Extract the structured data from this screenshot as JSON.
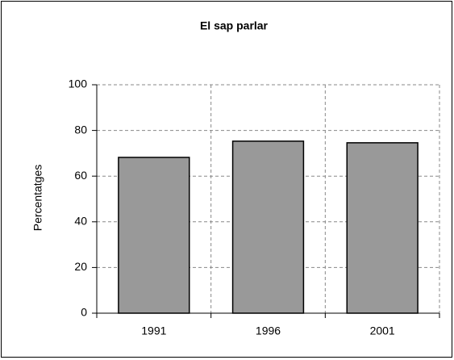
{
  "chart_data": {
    "type": "bar",
    "title": "El sap parlar",
    "y_label": "Percentatges",
    "categories": [
      "1991",
      "1996",
      "2001"
    ],
    "values": [
      68.2,
      75.3,
      74.6
    ],
    "color": "#999999",
    "ylim": [
      0,
      100
    ],
    "yticks": [
      0,
      20,
      40,
      60,
      80,
      100
    ],
    "grid": true
  }
}
